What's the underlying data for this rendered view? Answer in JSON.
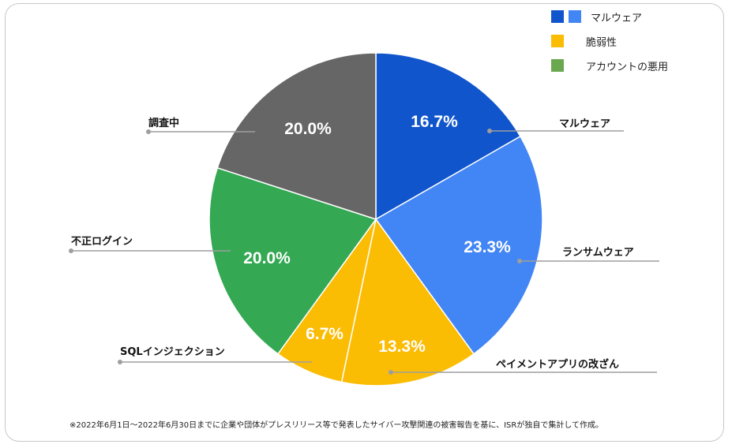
{
  "chart_data": {
    "type": "pie",
    "slices": [
      {
        "label": "マルウェア",
        "value": 16.7,
        "value_label": "16.7%",
        "color": "#1155cc",
        "group": "マルウェア"
      },
      {
        "label": "ランサムウェア",
        "value": 23.3,
        "value_label": "23.3%",
        "color": "#4285f4",
        "group": "マルウェア"
      },
      {
        "label": "ペイメントアプリの改ざん",
        "value": 13.3,
        "value_label": "13.3%",
        "color": "#fbbc04",
        "group": "脆弱性"
      },
      {
        "label": "SQLインジェクション",
        "value": 6.7,
        "value_label": "6.7%",
        "color": "#fbbc04",
        "group": "脆弱性"
      },
      {
        "label": "不正ログイン",
        "value": 20.0,
        "value_label": "20.0%",
        "color": "#34a853",
        "group": "アカウントの悪用"
      },
      {
        "label": "調査中",
        "value": 20.0,
        "value_label": "20.0%",
        "color": "#666666",
        "group": "調査中"
      }
    ],
    "legend": {
      "placement": "top-right",
      "items": [
        {
          "label": "マルウェア",
          "colors": [
            "#1155cc",
            "#4285f4"
          ]
        },
        {
          "label": "脆弱性",
          "colors": [
            "#fbbc04"
          ]
        },
        {
          "label": "アカウントの悪用",
          "colors": [
            "#6aa84f"
          ]
        }
      ]
    }
  },
  "footnote": "※2022年6月1日～2022年6月30日までに企業や団体がプレスリリース等で発表したサイバー攻撃関連の被害報告を基に、ISRが独自で集計して作成。"
}
